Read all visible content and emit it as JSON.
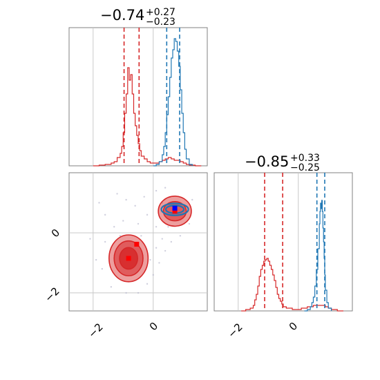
{
  "chart_data": {
    "type": "corner",
    "colors": {
      "blue": "#1f77b4",
      "red": "#d62728",
      "grid": "#c8c8c8",
      "frame": "#808080"
    },
    "x_ticks": [
      "−2",
      "0"
    ],
    "y_ticks": [
      "0",
      "−2"
    ],
    "panels": [
      {
        "id": "param1-marginal",
        "title": {
          "median": "−0.74",
          "plus": "+0.27",
          "minus": "−0.23"
        },
        "xlim": [
          -2.8,
          1.8
        ],
        "ylim": [
          0,
          1.0
        ],
        "quantile_lines": [
          {
            "series": "red",
            "x": [
              -0.97,
              -0.47
            ]
          },
          {
            "series": "blue",
            "x": [
              0.45,
              0.88
            ]
          }
        ],
        "series": [
          {
            "name": "",
            "color": "red",
            "x": [
              -2.0,
              -1.8,
              -1.6,
              -1.4,
              -1.3,
              -1.2,
              -1.1,
              -1.05,
              -1.0,
              -0.95,
              -0.9,
              -0.85,
              -0.8,
              -0.75,
              -0.7,
              -0.65,
              -0.6,
              -0.55,
              -0.5,
              -0.45,
              -0.4,
              -0.3,
              -0.2,
              -0.1,
              0.0,
              0.1,
              0.2,
              0.3,
              0.4,
              0.5,
              0.6,
              0.7,
              0.8,
              0.9,
              1.0,
              1.1,
              1.2,
              1.4,
              1.6
            ],
            "y": [
              0.0,
              0.005,
              0.01,
              0.02,
              0.03,
              0.06,
              0.09,
              0.14,
              0.24,
              0.38,
              0.52,
              0.71,
              0.62,
              0.66,
              0.52,
              0.38,
              0.29,
              0.22,
              0.16,
              0.11,
              0.07,
              0.05,
              0.03,
              0.02,
              0.02,
              0.02,
              0.03,
              0.04,
              0.05,
              0.06,
              0.05,
              0.04,
              0.04,
              0.03,
              0.02,
              0.01,
              0.005,
              0.0,
              0.0
            ]
          },
          {
            "name": "",
            "color": "blue",
            "x": [
              0.0,
              0.1,
              0.2,
              0.3,
              0.35,
              0.4,
              0.45,
              0.5,
              0.55,
              0.6,
              0.65,
              0.7,
              0.75,
              0.8,
              0.85,
              0.9,
              0.95,
              1.0,
              1.05,
              1.1,
              1.2,
              1.3
            ],
            "y": [
              0.0,
              0.01,
              0.03,
              0.08,
              0.14,
              0.24,
              0.37,
              0.5,
              0.64,
              0.78,
              0.84,
              0.92,
              0.9,
              0.83,
              0.72,
              0.55,
              0.38,
              0.24,
              0.12,
              0.05,
              0.01,
              0.0
            ]
          }
        ]
      },
      {
        "id": "param2-marginal",
        "title": {
          "median": "−0.85",
          "plus": "+0.33",
          "minus": "−0.25"
        },
        "xlim": [
          -2.8,
          1.8
        ],
        "ylim": [
          0,
          1.0
        ],
        "quantile_lines": [
          {
            "series": "red",
            "x": [
              -1.12,
              -0.52
            ]
          },
          {
            "series": "blue",
            "x": [
              0.62,
              0.88
            ]
          }
        ],
        "series": [
          {
            "name": "",
            "color": "red",
            "x": [
              -1.9,
              -1.75,
              -1.6,
              -1.5,
              -1.45,
              -1.4,
              -1.35,
              -1.3,
              -1.25,
              -1.2,
              -1.15,
              -1.1,
              -1.05,
              -1.0,
              -0.95,
              -0.9,
              -0.85,
              -0.8,
              -0.75,
              -0.7,
              -0.65,
              -0.6,
              -0.55,
              -0.5,
              -0.4,
              -0.3,
              -0.2,
              -0.1,
              0.0,
              0.1,
              0.2,
              0.3,
              0.4,
              0.5,
              0.6,
              0.7,
              0.8,
              0.9,
              1.0,
              1.1,
              1.3,
              1.5
            ],
            "y": [
              0.0,
              0.01,
              0.02,
              0.04,
              0.08,
              0.12,
              0.18,
              0.25,
              0.3,
              0.33,
              0.36,
              0.37,
              0.38,
              0.36,
              0.33,
              0.3,
              0.26,
              0.22,
              0.17,
              0.12,
              0.09,
              0.07,
              0.05,
              0.03,
              0.02,
              0.02,
              0.01,
              0.01,
              0.01,
              0.02,
              0.02,
              0.03,
              0.03,
              0.04,
              0.04,
              0.04,
              0.04,
              0.03,
              0.02,
              0.01,
              0.0,
              0.0
            ]
          },
          {
            "name": "",
            "color": "blue",
            "x": [
              0.2,
              0.3,
              0.4,
              0.45,
              0.5,
              0.55,
              0.6,
              0.65,
              0.7,
              0.72,
              0.74,
              0.76,
              0.78,
              0.8,
              0.82,
              0.84,
              0.86,
              0.88,
              0.9,
              0.95,
              1.0,
              1.1
            ],
            "y": [
              0.0,
              0.01,
              0.03,
              0.06,
              0.1,
              0.18,
              0.3,
              0.45,
              0.63,
              0.72,
              0.78,
              0.74,
              0.8,
              0.72,
              0.6,
              0.5,
              0.38,
              0.26,
              0.15,
              0.06,
              0.02,
              0.0
            ]
          }
        ]
      },
      {
        "id": "joint-2d",
        "xlim": [
          -2.8,
          1.8
        ],
        "ylim": [
          -2.6,
          2.0
        ],
        "contours": [
          {
            "series": "red",
            "cx": -0.82,
            "cy": -0.85,
            "rx": [
              0.65,
              0.48,
              0.3
            ],
            "ry": [
              0.78,
              0.58,
              0.36
            ]
          },
          {
            "series": "red",
            "cx": 0.72,
            "cy": 0.72,
            "rx": [
              0.55,
              0.38
            ],
            "ry": [
              0.5,
              0.32
            ]
          },
          {
            "series": "blue",
            "cx": 0.72,
            "cy": 0.78,
            "rx": [
              0.45,
              0.3
            ],
            "ry": [
              0.2,
              0.13
            ]
          }
        ],
        "markers": [
          {
            "series": "red",
            "x": -0.55,
            "y": -0.38
          },
          {
            "series": "red",
            "x": -0.82,
            "y": -0.85
          },
          {
            "series": "red",
            "x": 0.72,
            "y": 0.72
          },
          {
            "series": "blue",
            "x": 0.72,
            "y": 0.82
          }
        ],
        "scatter": [
          [
            -1.2,
            1.3
          ],
          [
            -0.9,
            1.1
          ],
          [
            -0.6,
            0.9
          ],
          [
            -0.3,
            1.2
          ],
          [
            0.1,
            1.4
          ],
          [
            0.3,
            1.0
          ],
          [
            -1.6,
            0.6
          ],
          [
            -1.3,
            0.2
          ],
          [
            -1.0,
            0.4
          ],
          [
            -0.5,
            0.3
          ],
          [
            -0.2,
            0.6
          ],
          [
            0.1,
            0.2
          ],
          [
            0.3,
            -0.2
          ],
          [
            0.4,
            -0.6
          ],
          [
            0.2,
            -1.0
          ],
          [
            0.0,
            -1.4
          ],
          [
            -0.2,
            -1.7
          ],
          [
            -0.5,
            -2.0
          ],
          [
            -0.9,
            -2.0
          ],
          [
            -1.4,
            -1.8
          ],
          [
            -1.7,
            -1.2
          ],
          [
            -1.9,
            -0.9
          ],
          [
            -1.6,
            -0.3
          ],
          [
            -0.1,
            -0.9
          ],
          [
            0.1,
            -0.5
          ],
          [
            0.5,
            0.2
          ],
          [
            1.2,
            0.3
          ],
          [
            1.3,
            1.1
          ],
          [
            0.4,
            1.5
          ],
          [
            -1.8,
            1.0
          ],
          [
            -2.1,
            -0.2
          ],
          [
            -0.4,
            -0.1
          ],
          [
            0.6,
            -0.3
          ],
          [
            0.9,
            -0.1
          ],
          [
            -1.1,
            -0.1
          ]
        ]
      }
    ]
  }
}
